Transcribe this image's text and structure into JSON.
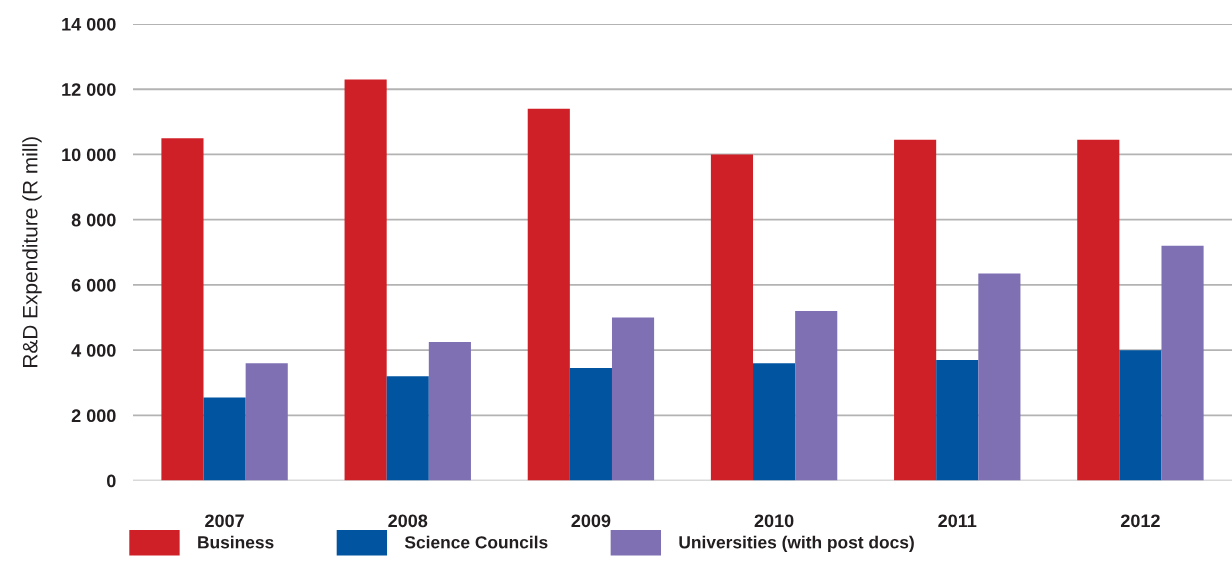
{
  "chart_data": {
    "type": "bar",
    "ylabel": "R&D Expenditure (R mill)",
    "categories": [
      "2007",
      "2008",
      "2009",
      "2010",
      "2011",
      "2012"
    ],
    "series": [
      {
        "name": "Business",
        "color": "#cf2027",
        "values": [
          10500,
          12300,
          11400,
          10000,
          10450,
          10450
        ]
      },
      {
        "name": "Science Councils",
        "color": "#0054a0",
        "values": [
          2550,
          3200,
          3450,
          3600,
          3700,
          4000
        ]
      },
      {
        "name": "Universities (with post docs)",
        "color": "#7e70b3",
        "values": [
          3600,
          4250,
          5000,
          5200,
          6350,
          7200
        ]
      }
    ],
    "ylim": [
      0,
      14000
    ],
    "yticks": [
      0,
      {
        "value": 2000,
        "label": "2 000"
      },
      {
        "value": 4000,
        "label": "4 000"
      },
      {
        "value": 6000,
        "label": "6 000"
      },
      {
        "value": 8000,
        "label": "8 000"
      },
      {
        "value": 10000,
        "label": "10 000"
      },
      {
        "value": 12000,
        "label": "12 000"
      },
      {
        "value": 14000,
        "label": "14 000"
      }
    ],
    "grid": "y",
    "legend": "bottom left"
  }
}
